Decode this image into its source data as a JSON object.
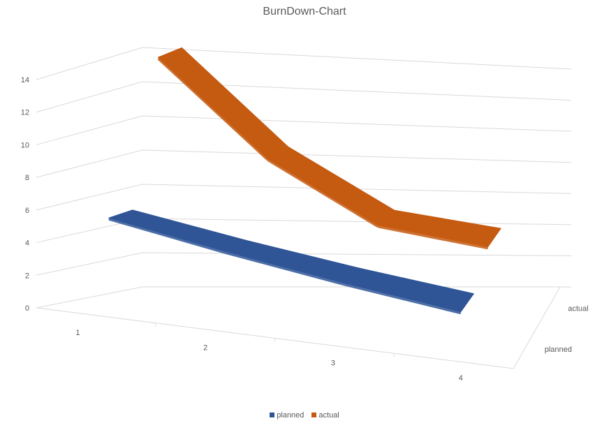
{
  "chart_data": {
    "type": "line",
    "title": "BurnDown-Chart",
    "categories": [
      "1",
      "2",
      "3",
      "4"
    ],
    "series": [
      {
        "name": "planned",
        "values": [
          6,
          5.2,
          4.4,
          3.6
        ],
        "color": "#2F5597"
      },
      {
        "name": "actual",
        "values": [
          15,
          10,
          6.5,
          6
        ],
        "color": "#C55A11"
      }
    ],
    "ylim": [
      0,
      14
    ],
    "yticks": [
      "0",
      "2",
      "4",
      "6",
      "8",
      "10",
      "12",
      "14"
    ],
    "depth_labels": [
      "planned",
      "actual"
    ],
    "grid": true,
    "legend": "bottom"
  }
}
